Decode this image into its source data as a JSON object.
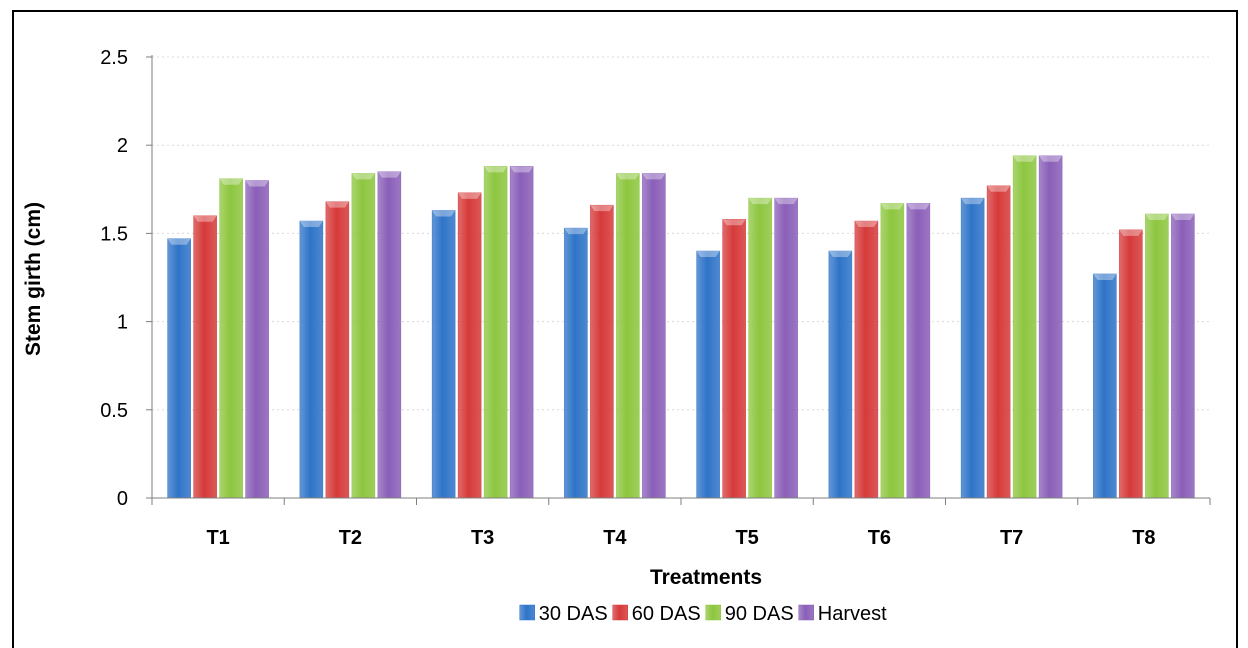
{
  "chart_data": {
    "type": "bar",
    "title": "",
    "xlabel": "Treatments",
    "ylabel": "Stem girth (cm)",
    "categories": [
      "T1",
      "T2",
      "T3",
      "T4",
      "T5",
      "T6",
      "T7",
      "T8"
    ],
    "yticks": [
      "0",
      "0.5",
      "1",
      "1.5",
      "2",
      "2.5"
    ],
    "ylim": [
      0,
      2.5
    ],
    "grid": true,
    "legend_position": "bottom",
    "series": [
      {
        "name": "30 DAS",
        "color": "#2F74C8",
        "values": [
          1.47,
          1.57,
          1.63,
          1.53,
          1.4,
          1.4,
          1.7,
          1.27
        ]
      },
      {
        "name": "60 DAS",
        "color": "#D63A3A",
        "values": [
          1.6,
          1.68,
          1.73,
          1.66,
          1.58,
          1.57,
          1.77,
          1.52
        ]
      },
      {
        "name": "90 DAS",
        "color": "#8DC63F",
        "values": [
          1.81,
          1.84,
          1.88,
          1.84,
          1.7,
          1.67,
          1.94,
          1.61
        ]
      },
      {
        "name": "Harvest",
        "color": "#8A5FB8",
        "values": [
          1.8,
          1.85,
          1.88,
          1.84,
          1.7,
          1.67,
          1.94,
          1.61
        ]
      }
    ]
  }
}
